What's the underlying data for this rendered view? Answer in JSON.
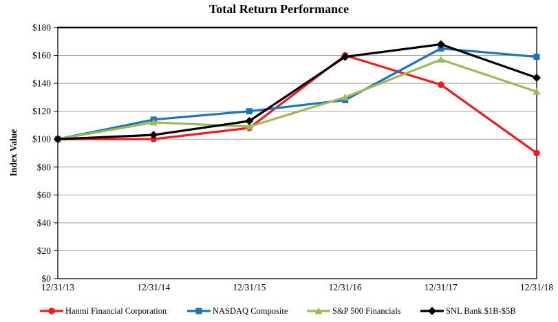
{
  "chart_data": {
    "type": "line",
    "title": "Total Return Performance",
    "ylabel": "Index Value",
    "xlabel": "",
    "categories": [
      "12/31/13",
      "12/31/14",
      "12/31/15",
      "12/31/16",
      "12/31/17",
      "12/31/18"
    ],
    "y_tick_labels": [
      "$0",
      "$20",
      "$40",
      "$60",
      "$80",
      "$100",
      "$120",
      "$140",
      "$160",
      "$180"
    ],
    "ylim": [
      0,
      180
    ],
    "y_tick_step": 20,
    "grid": true,
    "grid_color": "#9e9e9e",
    "axis_color": "#000000",
    "legend_position": "bottom",
    "series": [
      {
        "name": "Hanmi Financial Corporation",
        "color": "#ED1C24",
        "marker": "circle",
        "values": [
          100,
          100,
          108,
          160,
          139,
          90
        ]
      },
      {
        "name": "NASDAQ Composite",
        "color": "#1F74B8",
        "marker": "square",
        "values": [
          100,
          114,
          120,
          128,
          165,
          159
        ]
      },
      {
        "name": "S&P 500 Financials",
        "color": "#9BBB59",
        "marker": "triangle",
        "values": [
          100,
          112,
          109,
          130,
          157,
          134
        ]
      },
      {
        "name": "SNL Bank $1B-$5B",
        "color": "#000000",
        "marker": "diamond",
        "values": [
          100,
          103,
          113,
          159,
          168,
          144
        ]
      }
    ]
  }
}
